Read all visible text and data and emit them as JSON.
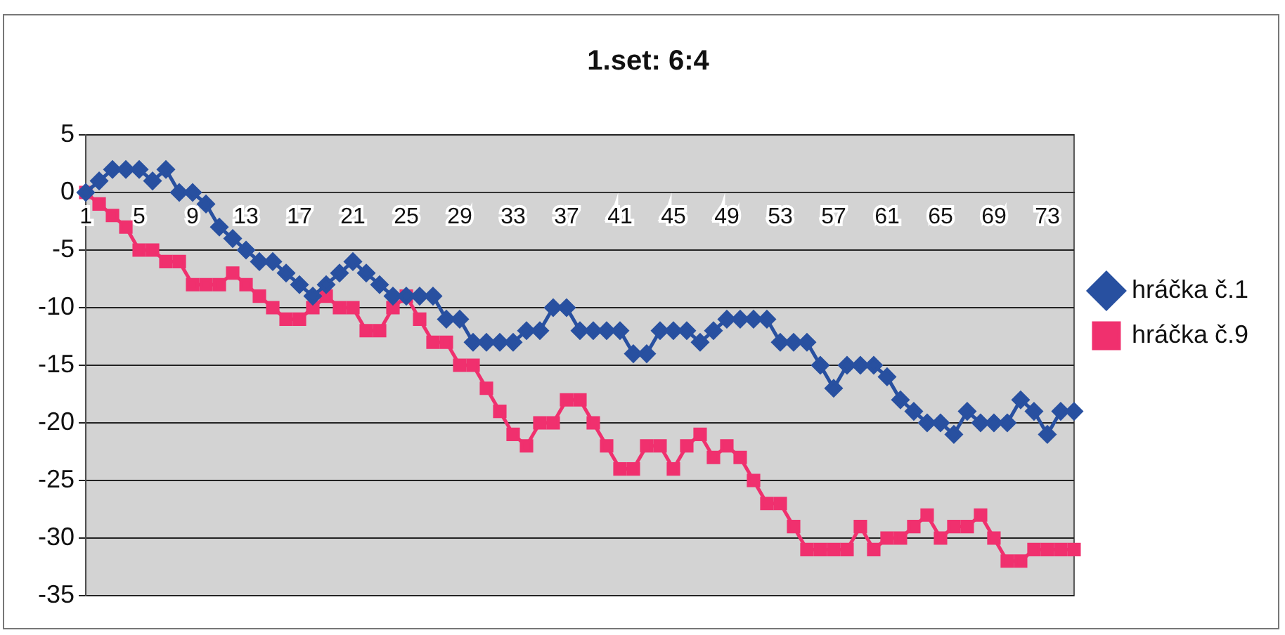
{
  "chart_data": {
    "type": "line",
    "title": "1.set: 6:4",
    "categories": [
      "1",
      null,
      null,
      null,
      "5",
      null,
      null,
      null,
      "9",
      null,
      null,
      null,
      "13",
      null,
      null,
      null,
      "17",
      null,
      null,
      null,
      "21",
      null,
      null,
      null,
      "25",
      null,
      null,
      null,
      "29",
      null,
      null,
      null,
      "33",
      null,
      null,
      null,
      "37",
      null,
      null,
      null,
      "41",
      null,
      null,
      null,
      "45",
      null,
      null,
      null,
      "49",
      null,
      null,
      null,
      "53",
      null,
      null,
      null,
      "57",
      null,
      null,
      null,
      "61",
      null,
      null,
      null,
      "65",
      null,
      null,
      null,
      "69",
      null,
      null,
      null,
      "73",
      null,
      null
    ],
    "series": [
      {
        "name": "hráčka č.1",
        "color": "#2850a0",
        "marker": "diamond",
        "values": [
          0,
          1,
          2,
          2,
          2,
          1,
          2,
          0,
          0,
          -1,
          -3,
          -4,
          -5,
          -6,
          -6,
          -7,
          -8,
          -9,
          -8,
          -7,
          -6,
          -7,
          -8,
          -9,
          -9,
          -9,
          -9,
          -11,
          -11,
          -13,
          -13,
          -13,
          -13,
          -12,
          -12,
          -10,
          -10,
          -12,
          -12,
          -12,
          -12,
          -14,
          -14,
          -12,
          -12,
          -12,
          -13,
          -12,
          -11,
          -11,
          -11,
          -11,
          -13,
          -13,
          -13,
          -15,
          -17,
          -15,
          -15,
          -15,
          -16,
          -18,
          -19,
          -20,
          -20,
          -21,
          -19,
          -20,
          -20,
          -20,
          -18,
          -19,
          -21,
          -19,
          -19
        ]
      },
      {
        "name": "hráčka č.9",
        "color": "#f0306e",
        "marker": "square",
        "values": [
          0,
          -1,
          -2,
          -3,
          -5,
          -5,
          -6,
          -6,
          -8,
          -8,
          -8,
          -7,
          -8,
          -9,
          -10,
          -11,
          -11,
          -10,
          -9,
          -10,
          -10,
          -12,
          -12,
          -10,
          -9,
          -11,
          -13,
          -13,
          -15,
          -15,
          -17,
          -19,
          -21,
          -22,
          -20,
          -20,
          -18,
          -18,
          -20,
          -22,
          -24,
          -24,
          -22,
          -22,
          -24,
          -22,
          -21,
          -23,
          -22,
          -23,
          -25,
          -27,
          -27,
          -29,
          -31,
          -31,
          -31,
          -31,
          -29,
          -31,
          -30,
          -30,
          -29,
          -28,
          -30,
          -29,
          -29,
          -28,
          -30,
          -32,
          -32,
          -31,
          -31,
          -31,
          -31
        ]
      }
    ],
    "ylim": [
      -35,
      5
    ],
    "yticks": [
      -35,
      -30,
      -25,
      -20,
      -15,
      -10,
      -5,
      0,
      5
    ],
    "grid": "y",
    "legend": "right"
  }
}
